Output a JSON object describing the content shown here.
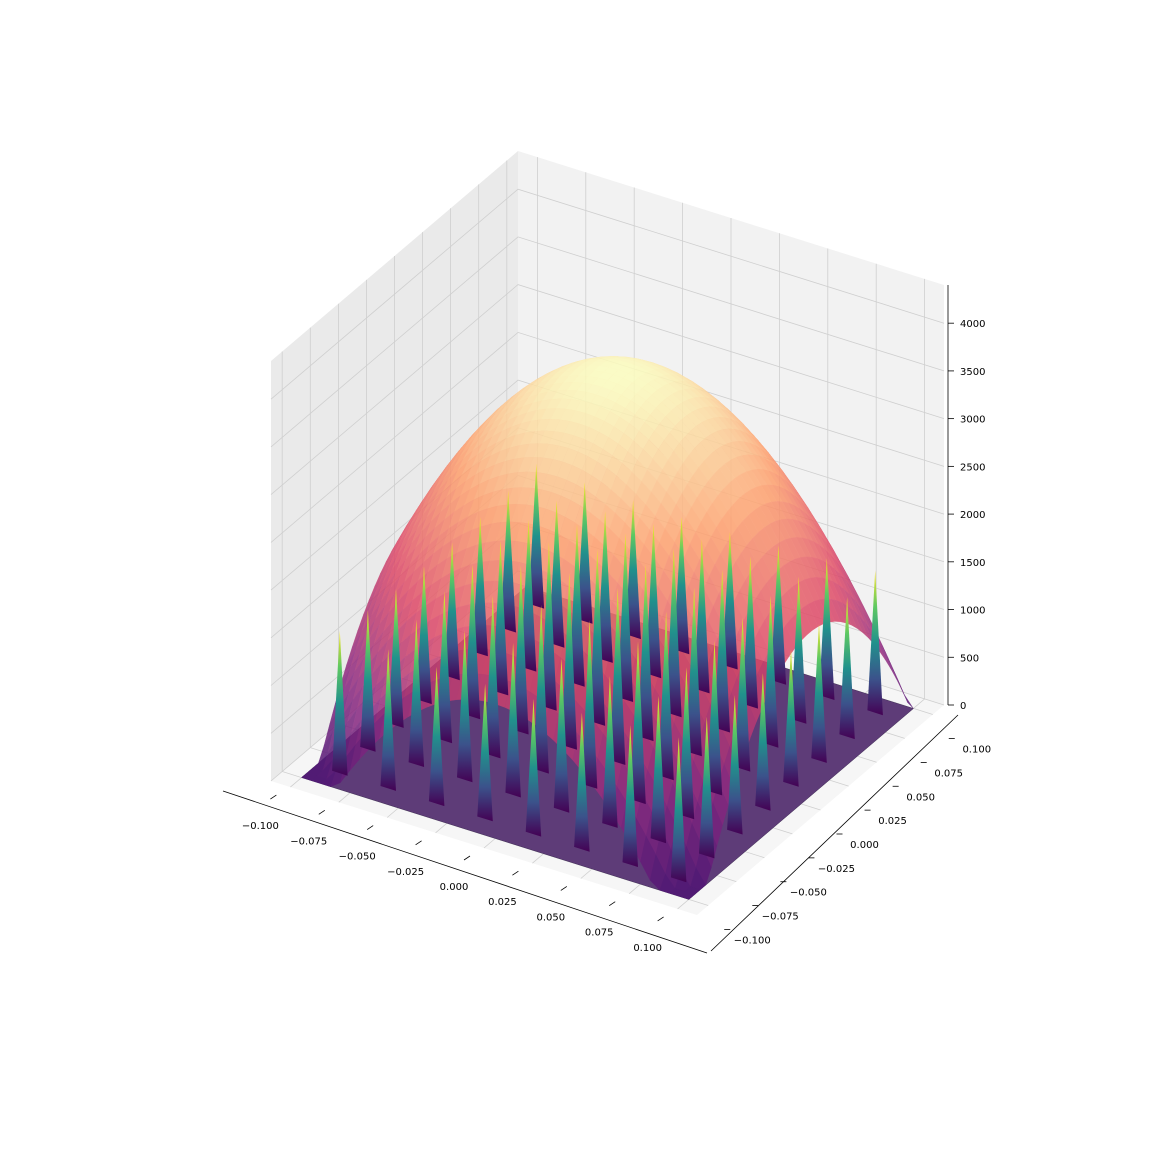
{
  "chart_data": {
    "type": "surface3d",
    "title": "",
    "xlabel": "",
    "ylabel": "",
    "zlabel": "",
    "xlim": [
      -0.11,
      0.11
    ],
    "ylim": [
      -0.11,
      0.11
    ],
    "zlim": [
      0,
      4400
    ],
    "x_ticks": [
      "−0.100",
      "−0.075",
      "−0.050",
      "−0.025",
      "0.000",
      "0.025",
      "0.050",
      "0.075",
      "0.100"
    ],
    "x_tick_values": [
      -0.1,
      -0.075,
      -0.05,
      -0.025,
      0,
      0.025,
      0.05,
      0.075,
      0.1
    ],
    "y_ticks": [
      "−0.100",
      "−0.075",
      "−0.050",
      "−0.025",
      "0.000",
      "0.025",
      "0.050",
      "0.075",
      "0.100"
    ],
    "y_tick_values": [
      -0.1,
      -0.075,
      -0.05,
      -0.025,
      0,
      0.025,
      0.05,
      0.075,
      0.1
    ],
    "z_ticks": [
      "0",
      "500",
      "1000",
      "1500",
      "2000",
      "2500",
      "3000",
      "3500",
      "4000"
    ],
    "z_tick_values": [
      0,
      500,
      1000,
      1500,
      2000,
      2500,
      3000,
      3500,
      4000
    ],
    "grid": true,
    "series": [
      {
        "kind": "smooth-surface",
        "colormap": "magma",
        "peak_value": 3800,
        "corner_values": [
          500,
          1600,
          0,
          0
        ],
        "note_center": [
          0,
          0
        ]
      },
      {
        "kind": "spike-lattice",
        "colormap": "viridis",
        "centers_per_axis": [
          -0.0875,
          -0.0625,
          -0.0375,
          -0.0125,
          0.0125,
          0.0375,
          0.0625,
          0.0875
        ],
        "spike_peak": 1850,
        "base_value": 0
      }
    ]
  },
  "colors": {
    "pane_left": "#eaeaea",
    "pane_right": "#f2f2f2",
    "pane_floor": "#f6f6f6",
    "grid": "#cfcfcf",
    "floor_surface": "#5e3c78",
    "magma_stops": [
      "#000004",
      "#3b0f70",
      "#8c2981",
      "#de4968",
      "#fe9f6d",
      "#fcfdbf"
    ],
    "viridis_stops": [
      "#440154",
      "#3b528b",
      "#21918c",
      "#5ec962",
      "#fde725"
    ]
  }
}
